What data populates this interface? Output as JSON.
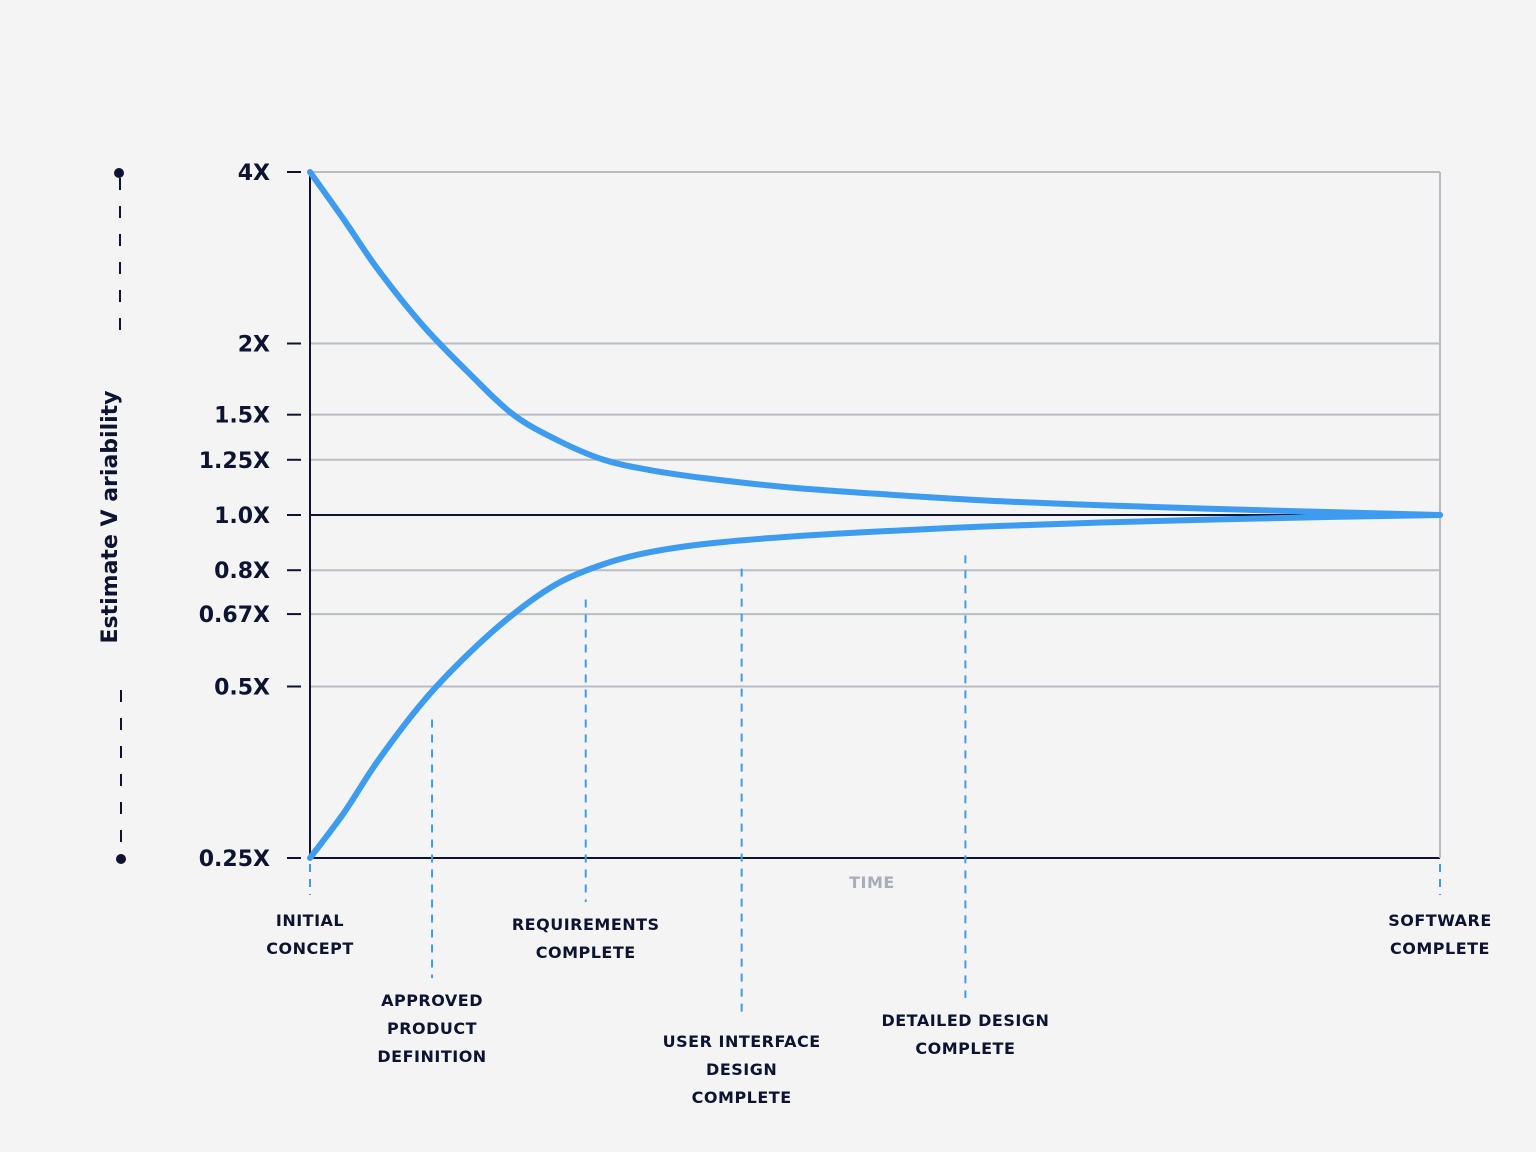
{
  "chart_data": {
    "type": "line",
    "title": "",
    "ylabel": "Estimate V ariability",
    "xlabel": "TIME",
    "y_scale": "log",
    "ylim": [
      0.25,
      4
    ],
    "y_ticks": [
      {
        "value": 4,
        "label": "4X"
      },
      {
        "value": 2,
        "label": "2X"
      },
      {
        "value": 1.5,
        "label": "1.5X"
      },
      {
        "value": 1.25,
        "label": "1.25X"
      },
      {
        "value": 1.0,
        "label": "1.0X"
      },
      {
        "value": 0.8,
        "label": "0.8X"
      },
      {
        "value": 0.67,
        "label": "0.67X"
      },
      {
        "value": 0.5,
        "label": "0.5X"
      },
      {
        "value": 0.25,
        "label": "0.25X"
      }
    ],
    "xlim": [
      0,
      1
    ],
    "milestones": [
      {
        "x": 0.0,
        "lines": [
          "INITIAL",
          "CONCEPT"
        ]
      },
      {
        "x": 0.108,
        "lines": [
          "APPROVED",
          "PRODUCT",
          "DEFINITION"
        ]
      },
      {
        "x": 0.244,
        "lines": [
          "REQUIREMENTS",
          "COMPLETE"
        ]
      },
      {
        "x": 0.382,
        "lines": [
          "USER INTERFACE",
          "DESIGN",
          "COMPLETE"
        ]
      },
      {
        "x": 0.58,
        "lines": [
          "DETAILED DESIGN",
          "COMPLETE"
        ]
      },
      {
        "x": 1.0,
        "lines": [
          "SOFTWARE",
          "COMPLETE"
        ]
      }
    ],
    "series": [
      {
        "color": "#3d9cf0",
        "x": [
          0.0,
          0.03,
          0.06,
          0.1,
          0.14,
          0.18,
          0.22,
          0.26,
          0.3,
          0.35,
          0.42,
          0.5,
          0.6,
          0.7,
          0.8,
          0.9,
          1.0
        ],
        "y": [
          4.0,
          3.3,
          2.7,
          2.15,
          1.78,
          1.5,
          1.35,
          1.25,
          1.2,
          1.16,
          1.12,
          1.09,
          1.06,
          1.04,
          1.025,
          1.012,
          1.0
        ]
      },
      {
        "color": "#3d9cf0",
        "x": [
          0.0,
          0.03,
          0.06,
          0.1,
          0.14,
          0.18,
          0.22,
          0.26,
          0.3,
          0.35,
          0.42,
          0.5,
          0.6,
          0.7,
          0.8,
          0.9,
          1.0
        ],
        "y": [
          0.25,
          0.3,
          0.37,
          0.47,
          0.57,
          0.67,
          0.76,
          0.82,
          0.86,
          0.89,
          0.915,
          0.935,
          0.955,
          0.97,
          0.982,
          0.992,
          1.0
        ]
      }
    ],
    "grid": true
  }
}
